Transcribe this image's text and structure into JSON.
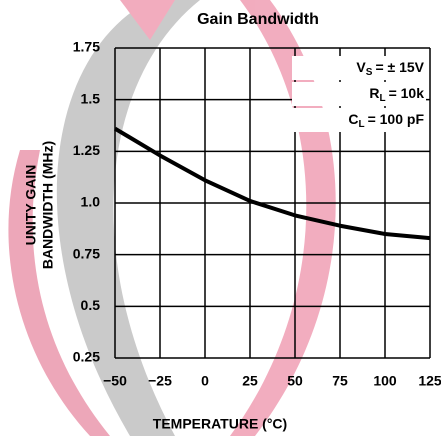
{
  "chart_data": {
    "type": "line",
    "title": "Gain Bandwidth",
    "x_label": "TEMPERATURE (°C)",
    "y_label": [
      "UNITY GAIN",
      "BANDWIDTH (MHz)"
    ],
    "annotations": [
      {
        "symbol": "V",
        "sub": "S",
        "rest": "= ± 15V"
      },
      {
        "symbol": "R",
        "sub": "L",
        "rest": "= 10k"
      },
      {
        "symbol": "C",
        "sub": "L",
        "rest": "= 100 pF"
      }
    ],
    "x": [
      -50,
      -25,
      0,
      25,
      50,
      75,
      100,
      125
    ],
    "series": [
      {
        "name": "Unity Gain Bandwidth",
        "color": "#000000",
        "values": [
          1.36,
          1.23,
          1.11,
          1.01,
          0.94,
          0.89,
          0.85,
          0.83
        ]
      }
    ],
    "xlim": [
      -50,
      125
    ],
    "xticks": [
      {
        "value": -50,
        "label": "−50"
      },
      {
        "value": -25,
        "label": "−25"
      },
      0,
      25,
      50,
      75,
      100,
      125
    ],
    "ylim": [
      0.25,
      1.75
    ],
    "yticks": [
      0.25,
      0.5,
      0.75,
      {
        "value": 1,
        "label": "1.0"
      },
      1.25,
      1.5,
      1.75
    ],
    "grid": true
  }
}
